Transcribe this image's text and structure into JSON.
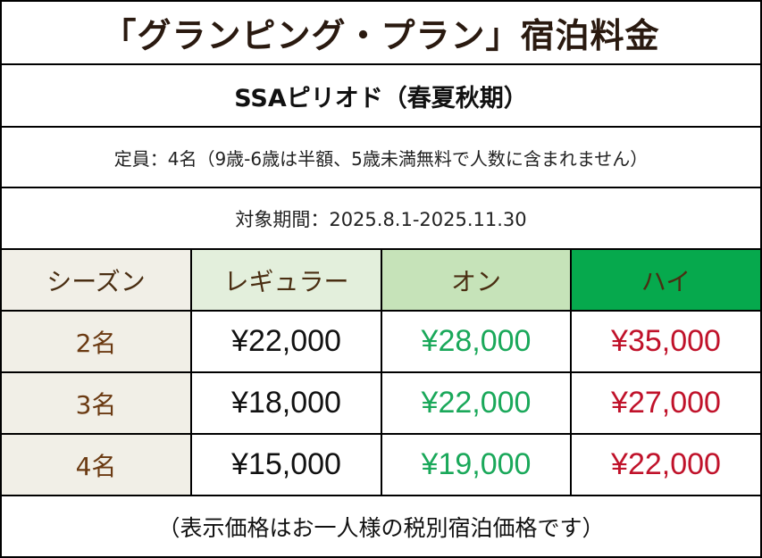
{
  "title": "「グランピング・プラン」宿泊料金",
  "subtitle": "SSAピリオド（春夏秋期）",
  "capacity_note": "定員：4名（9歳-6歳は半額、5歳未満無料で人数に含まれません）",
  "period": "対象期間：2025.8.1-2025.11.30",
  "table": {
    "headers": [
      "シーズン",
      "レギュラー",
      "オン",
      "ハイ"
    ],
    "header_colors": [
      "#f1efe7",
      "#e3efdc",
      "#c6e3b9",
      "#06a94d"
    ],
    "rows": [
      {
        "guests": "2名",
        "regular": "¥22,000",
        "on": "¥28,000",
        "high": "¥35,000"
      },
      {
        "guests": "3名",
        "regular": "¥18,000",
        "on": "¥22,000",
        "high": "¥27,000"
      },
      {
        "guests": "4名",
        "regular": "¥15,000",
        "on": "¥19,000",
        "high": "¥22,000"
      }
    ]
  },
  "footer_note": "（表示価格はお一人様の税別宿泊価格です）",
  "colors": {
    "on_price": "#1aa85a",
    "high_price": "#c0122a",
    "season_text": "#6b3a12"
  }
}
